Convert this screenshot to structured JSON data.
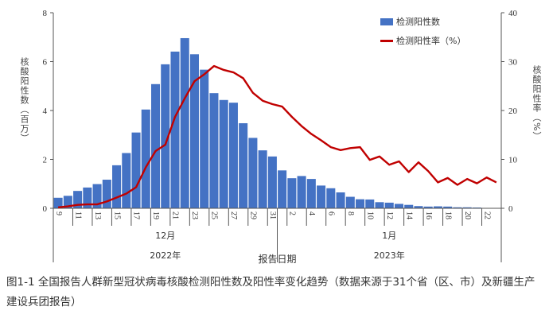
{
  "chart_data": {
    "type": "bar+line",
    "x_dates": [
      "12-9",
      "12-10",
      "12-11",
      "12-12",
      "12-13",
      "12-14",
      "12-15",
      "12-16",
      "12-17",
      "12-18",
      "12-19",
      "12-20",
      "12-21",
      "12-22",
      "12-23",
      "12-24",
      "12-25",
      "12-26",
      "12-27",
      "12-28",
      "12-29",
      "12-30",
      "12-31",
      "1-1",
      "1-2",
      "1-3",
      "1-4",
      "1-5",
      "1-6",
      "1-7",
      "1-8",
      "1-9",
      "1-10",
      "1-11",
      "1-12",
      "1-13",
      "1-14",
      "1-15",
      "1-16",
      "1-17",
      "1-18",
      "1-19",
      "1-20",
      "1-21",
      "1-22",
      "1-23"
    ],
    "x_tick_labels": [
      "9",
      "11",
      "13",
      "15",
      "17",
      "19",
      "21",
      "23",
      "25",
      "27",
      "29",
      "31",
      "2",
      "4",
      "6",
      "8",
      "10",
      "12",
      "14",
      "16",
      "18",
      "20",
      "22"
    ],
    "series": [
      {
        "name": "检测阳性数",
        "type": "bar",
        "axis": "left",
        "color": "#4472c4",
        "values": [
          0.43,
          0.51,
          0.71,
          0.85,
          0.99,
          1.17,
          1.76,
          2.26,
          3.1,
          4.04,
          5.08,
          5.89,
          6.41,
          6.96,
          6.3,
          5.67,
          4.71,
          4.43,
          4.32,
          3.48,
          2.88,
          2.37,
          2.12,
          1.55,
          1.23,
          1.32,
          1.2,
          0.93,
          0.82,
          0.65,
          0.47,
          0.37,
          0.36,
          0.25,
          0.23,
          0.18,
          0.14,
          0.09,
          0.07,
          0.08,
          0.07,
          0.04,
          0.04,
          0.03,
          0.01,
          0.01
        ]
      },
      {
        "name": "检测阳性率（%）",
        "type": "line",
        "axis": "right",
        "color": "#c00000",
        "values": [
          0.2,
          0.4,
          0.7,
          0.8,
          0.8,
          1.4,
          2.2,
          3.0,
          4.3,
          8.4,
          11.7,
          13.0,
          18.7,
          22.5,
          26.0,
          27.4,
          29.1,
          28.3,
          27.8,
          26.6,
          23.6,
          22.0,
          21.3,
          20.8,
          18.7,
          16.8,
          15.2,
          13.9,
          12.5,
          11.9,
          12.3,
          12.5,
          9.9,
          10.6,
          8.9,
          9.6,
          7.4,
          9.4,
          7.6,
          5.3,
          6.2,
          4.8,
          6.0,
          5.1,
          6.3,
          5.3
        ]
      }
    ],
    "ylabel_left": "核酸阳性数（百万）",
    "ylabel_right": "核酸阳性率（%）",
    "ylim_left": [
      0,
      8
    ],
    "yticks_left": [
      "0",
      "2",
      "4",
      "6",
      "8"
    ],
    "ylim_right": [
      0,
      40
    ],
    "yticks_right": [
      "0",
      "10",
      "20",
      "30",
      "40"
    ],
    "months": [
      {
        "label": "12月",
        "year": "2022年"
      },
      {
        "label": "1月",
        "year": "2023年"
      }
    ],
    "xlabel": "报告日期",
    "legend_position": "top-right"
  },
  "caption": "图1-1 全国报告人群新型冠状病毒核酸检测阳性数及阳性率变化趋势（数据来源于31个省（区、市）及新疆生产建设兵团报告）"
}
